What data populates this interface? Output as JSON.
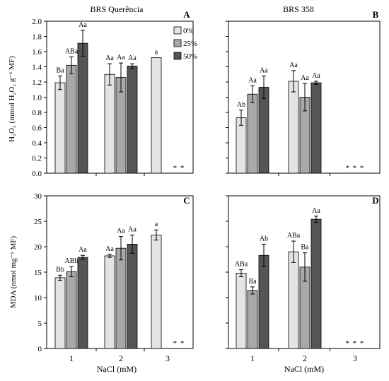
{
  "colors": {
    "0%": "#e4e4e4",
    "25%": "#a8a8a8",
    "50%": "#555555",
    "axis": "#000000"
  },
  "legend": [
    "0%",
    "25%",
    "50%"
  ],
  "xlabel": "NaCl (mM)",
  "chart_data": [
    {
      "type": "bar",
      "panel": "A",
      "title": "BRS Querência",
      "ylabel": "H₂O₂ (mmol H₂O₂ g⁻¹ MF)",
      "ylim": [
        0,
        2.0
      ],
      "yticks": [
        "0.0",
        "0.2",
        "0.4",
        "0.6",
        "0.8",
        "1.0",
        "1.2",
        "1.4",
        "1.6",
        "1.8",
        "2.0"
      ],
      "categories": [
        "1",
        "2",
        "3"
      ],
      "series": [
        {
          "name": "0%",
          "values": [
            1.19,
            1.3,
            1.52
          ],
          "errors": [
            0.09,
            0.14,
            0
          ],
          "labels": [
            "Ba",
            "Aa",
            "a"
          ]
        },
        {
          "name": "25%",
          "values": [
            1.42,
            1.26,
            null
          ],
          "errors": [
            0.11,
            0.19,
            0
          ],
          "labels": [
            "ABa",
            "Aa",
            ""
          ]
        },
        {
          "name": "50%",
          "values": [
            1.71,
            1.41,
            null
          ],
          "errors": [
            0.17,
            0.03,
            0
          ],
          "labels": [
            "Aa",
            "Aa",
            ""
          ]
        }
      ],
      "missing_markers": [
        {
          "category": "3",
          "text": "* *"
        }
      ],
      "legend_position": "top-right"
    },
    {
      "type": "bar",
      "panel": "B",
      "title": "BRS 358",
      "ylim": [
        0,
        2.0
      ],
      "categories": [
        "1",
        "2",
        "3"
      ],
      "series": [
        {
          "name": "0%",
          "values": [
            0.73,
            1.21,
            null
          ],
          "errors": [
            0.1,
            0.14,
            0
          ],
          "labels": [
            "Ab",
            "Aa",
            ""
          ]
        },
        {
          "name": "25%",
          "values": [
            1.04,
            1.0,
            null
          ],
          "errors": [
            0.11,
            0.18,
            0
          ],
          "labels": [
            "Aa",
            "Aa",
            ""
          ]
        },
        {
          "name": "50%",
          "values": [
            1.13,
            1.19,
            null
          ],
          "errors": [
            0.15,
            0.02,
            0
          ],
          "labels": [
            "Aa",
            "Aa",
            ""
          ]
        }
      ],
      "missing_markers": [
        {
          "category": "3",
          "text": "* * *"
        }
      ]
    },
    {
      "type": "bar",
      "panel": "C",
      "ylabel": "MDA (nmol mg⁻¹ MF)",
      "ylim": [
        0,
        30
      ],
      "yticks": [
        "0",
        "5",
        "10",
        "15",
        "20",
        "25",
        "30"
      ],
      "xlabel": "NaCl (mM)",
      "categories": [
        "1",
        "2",
        "3"
      ],
      "series": [
        {
          "name": "0%",
          "values": [
            13.9,
            18.2,
            22.3
          ],
          "errors": [
            0.5,
            0.3,
            1.0
          ],
          "labels": [
            "Bb",
            "Aa",
            "a"
          ]
        },
        {
          "name": "25%",
          "values": [
            15.1,
            19.7,
            null
          ],
          "errors": [
            1.0,
            2.3,
            0
          ],
          "labels": [
            "ABb",
            "Aa",
            ""
          ]
        },
        {
          "name": "50%",
          "values": [
            17.9,
            20.5,
            null
          ],
          "errors": [
            0.4,
            1.8,
            0
          ],
          "labels": [
            "Aa",
            "Aa",
            ""
          ]
        }
      ],
      "missing_markers": [
        {
          "category": "3",
          "text": "* *"
        }
      ]
    },
    {
      "type": "bar",
      "panel": "D",
      "ylim": [
        0,
        30
      ],
      "xlabel": "NaCl (mM)",
      "categories": [
        "1",
        "2",
        "3"
      ],
      "series": [
        {
          "name": "0%",
          "values": [
            14.8,
            19.0,
            null
          ],
          "errors": [
            0.7,
            2.1,
            0
          ],
          "labels": [
            "ABa",
            "ABa",
            ""
          ]
        },
        {
          "name": "25%",
          "values": [
            11.4,
            16.0,
            null
          ],
          "errors": [
            0.7,
            2.8,
            0
          ],
          "labels": [
            "Ba",
            "Ba",
            ""
          ]
        },
        {
          "name": "50%",
          "values": [
            18.3,
            25.4,
            null
          ],
          "errors": [
            2.2,
            0.6,
            0
          ],
          "labels": [
            "Ab",
            "Aa",
            ""
          ]
        }
      ],
      "missing_markers": [
        {
          "category": "3",
          "text": "* * *"
        }
      ]
    }
  ]
}
